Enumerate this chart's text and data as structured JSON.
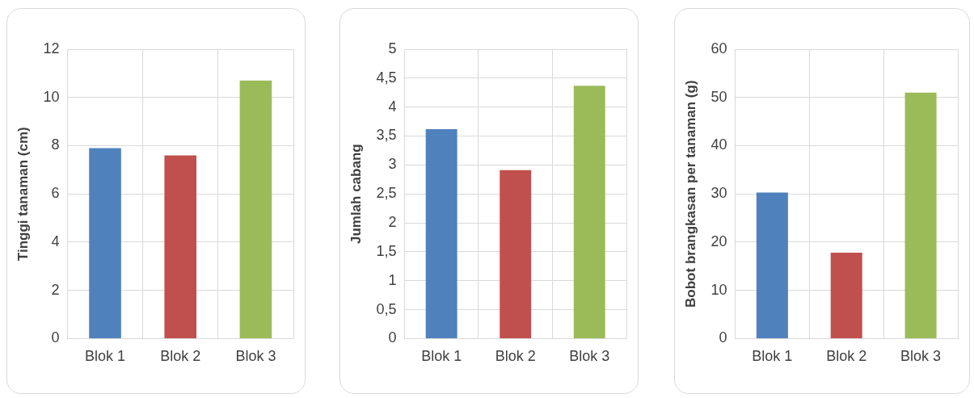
{
  "chart_data": [
    {
      "type": "bar",
      "ylabel": "Tinggi tanaman (cm)",
      "categories": [
        "Blok 1",
        "Blok 2",
        "Blok 3"
      ],
      "values": [
        7.9,
        7.6,
        10.7
      ],
      "colors": [
        "#4f81bd",
        "#c0504d",
        "#9bbb59"
      ],
      "ylim": [
        0,
        12
      ],
      "yticks": [
        0,
        2,
        4,
        6,
        8,
        10,
        12
      ],
      "grid": true
    },
    {
      "type": "bar",
      "ylabel": "Jumlah cabang",
      "categories": [
        "Blok 1",
        "Blok 2",
        "Blok 3"
      ],
      "values": [
        3.62,
        2.91,
        4.37
      ],
      "colors": [
        "#4f81bd",
        "#c0504d",
        "#9bbb59"
      ],
      "ylim": [
        0,
        5
      ],
      "yticks": [
        0,
        {
          "value": 0.5,
          "label": "0,5"
        },
        1,
        {
          "value": 1.5,
          "label": "1,5"
        },
        2,
        {
          "value": 2.5,
          "label": "2,5"
        },
        3,
        {
          "value": 3.5,
          "label": "3,5"
        },
        4,
        {
          "value": 4.5,
          "label": "4,5"
        },
        5
      ],
      "grid": true
    },
    {
      "type": "bar",
      "ylabel": "Bobot brangkasan per tanaman (g)",
      "categories": [
        "Blok 1",
        "Blok 2",
        "Blok 3"
      ],
      "values": [
        30.3,
        17.8,
        51.0
      ],
      "colors": [
        "#4f81bd",
        "#c0504d",
        "#9bbb59"
      ],
      "ylim": [
        0,
        60
      ],
      "yticks": [
        0,
        10,
        20,
        30,
        40,
        50,
        60
      ],
      "grid": true
    }
  ]
}
